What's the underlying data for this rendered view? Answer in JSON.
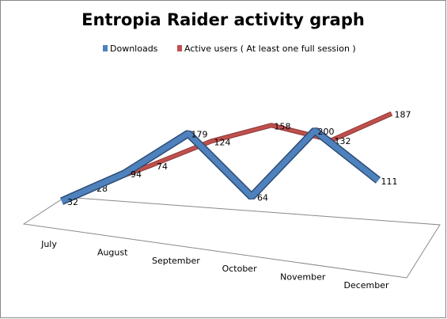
{
  "chart_data": {
    "type": "line",
    "title": "Entropia Raider activity graph",
    "categories": [
      "July",
      "August",
      "September",
      "October",
      "November",
      "December"
    ],
    "series": [
      {
        "name": "Downloads",
        "color": "#4f81bd",
        "values": [
          32,
          94,
          179,
          64,
          200,
          111
        ]
      },
      {
        "name": "Active users ( At least one full session )",
        "color": "#c0504d",
        "values": [
          28,
          74,
          124,
          158,
          132,
          187
        ]
      }
    ],
    "legend": "top"
  }
}
